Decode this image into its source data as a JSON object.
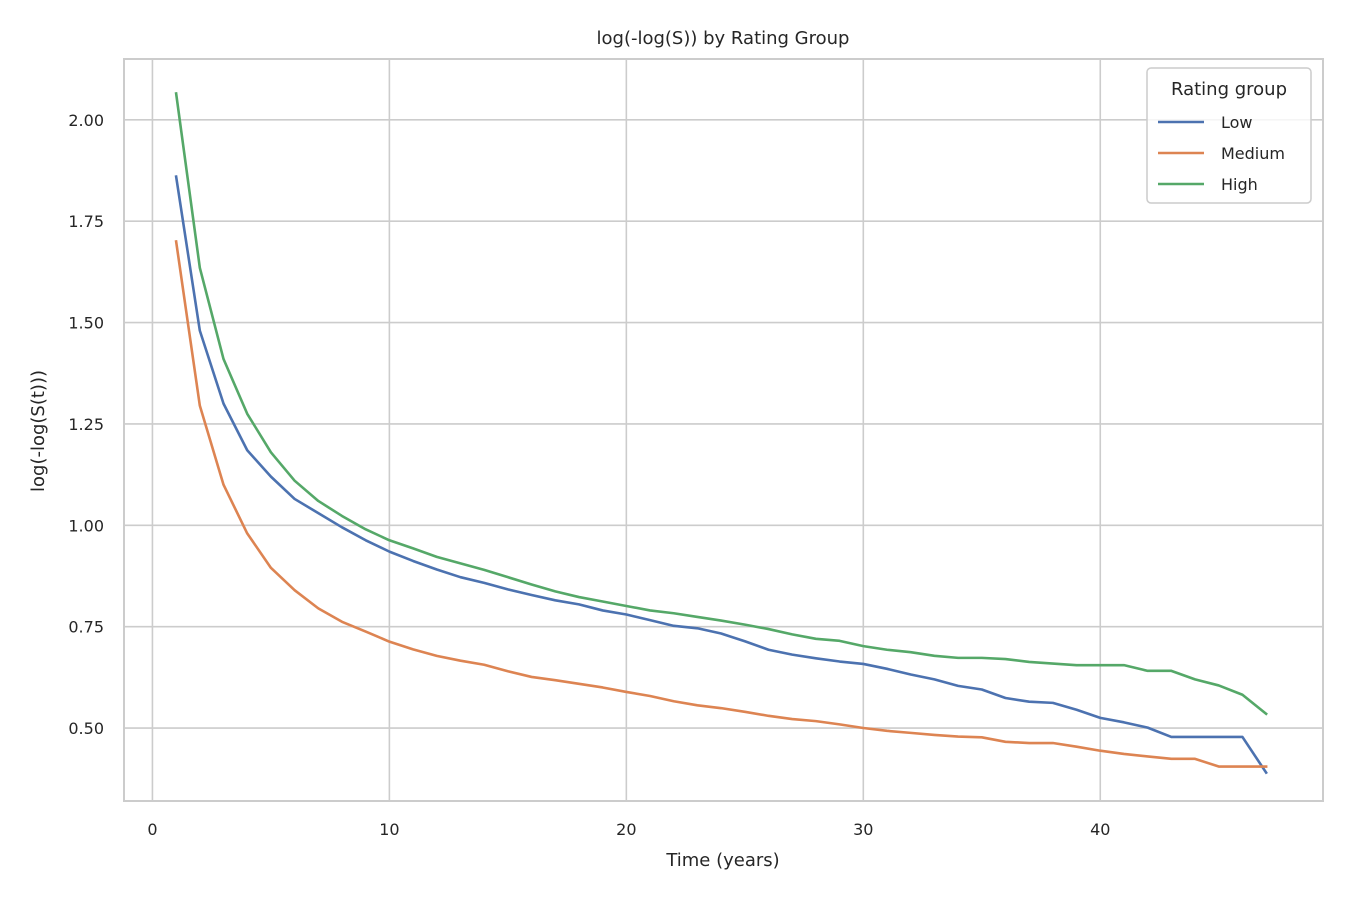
{
  "chart_data": {
    "type": "line",
    "title": "log(-log(S)) by Rating Group",
    "xlabel": "Time (years)",
    "ylabel": "log(-log(S(t)))",
    "xlim": [
      -1.2,
      49.4
    ],
    "ylim": [
      0.32,
      2.15
    ],
    "xticks": [
      0,
      10,
      20,
      30,
      40
    ],
    "xtick_labels": [
      "0",
      "10",
      "20",
      "30",
      "40"
    ],
    "yticks": [
      0.5,
      0.75,
      1.0,
      1.25,
      1.5,
      1.75,
      2.0
    ],
    "ytick_labels": [
      "0.50",
      "0.75",
      "1.00",
      "1.25",
      "1.50",
      "1.75",
      "2.00"
    ],
    "grid": true,
    "legend": {
      "title": "Rating group",
      "position": "top-right"
    },
    "x": [
      1,
      2,
      3,
      4,
      5,
      6,
      7,
      8,
      9,
      10,
      11,
      12,
      13,
      14,
      15,
      16,
      17,
      18,
      19,
      20,
      21,
      22,
      23,
      24,
      25,
      26,
      27,
      28,
      29,
      30,
      31,
      32,
      33,
      34,
      35,
      36,
      37,
      38,
      39,
      40,
      41,
      42,
      43,
      44,
      45,
      46,
      47
    ],
    "series": [
      {
        "name": "Low",
        "color": "#4c72b0",
        "values": [
          1.86,
          1.48,
          1.3,
          1.185,
          1.12,
          1.065,
          1.03,
          0.995,
          0.963,
          0.935,
          0.912,
          0.891,
          0.872,
          0.858,
          0.842,
          0.828,
          0.815,
          0.805,
          0.79,
          0.78,
          0.766,
          0.752,
          0.746,
          0.733,
          0.714,
          0.693,
          0.681,
          0.672,
          0.664,
          0.658,
          0.646,
          0.632,
          0.62,
          0.604,
          0.595,
          0.574,
          0.565,
          0.562,
          0.545,
          0.525,
          0.514,
          0.501,
          0.478,
          0.478,
          0.478,
          0.478,
          0.39
        ]
      },
      {
        "name": "Medium",
        "color": "#dd8452",
        "values": [
          1.7,
          1.295,
          1.1,
          0.98,
          0.895,
          0.84,
          0.795,
          0.762,
          0.738,
          0.713,
          0.694,
          0.678,
          0.666,
          0.656,
          0.64,
          0.626,
          0.618,
          0.609,
          0.6,
          0.589,
          0.579,
          0.566,
          0.556,
          0.549,
          0.54,
          0.53,
          0.522,
          0.517,
          0.509,
          0.5,
          0.493,
          0.488,
          0.483,
          0.479,
          0.477,
          0.466,
          0.463,
          0.463,
          0.454,
          0.444,
          0.436,
          0.43,
          0.424,
          0.424,
          0.405,
          0.405,
          0.405
        ]
      },
      {
        "name": "High",
        "color": "#55a868",
        "values": [
          2.065,
          1.635,
          1.41,
          1.275,
          1.18,
          1.11,
          1.06,
          1.023,
          0.99,
          0.963,
          0.943,
          0.922,
          0.906,
          0.89,
          0.872,
          0.854,
          0.837,
          0.823,
          0.812,
          0.801,
          0.79,
          0.783,
          0.774,
          0.765,
          0.755,
          0.744,
          0.731,
          0.72,
          0.715,
          0.702,
          0.693,
          0.687,
          0.678,
          0.673,
          0.673,
          0.67,
          0.663,
          0.659,
          0.655,
          0.655,
          0.655,
          0.641,
          0.641,
          0.62,
          0.605,
          0.582,
          0.535
        ]
      }
    ]
  }
}
